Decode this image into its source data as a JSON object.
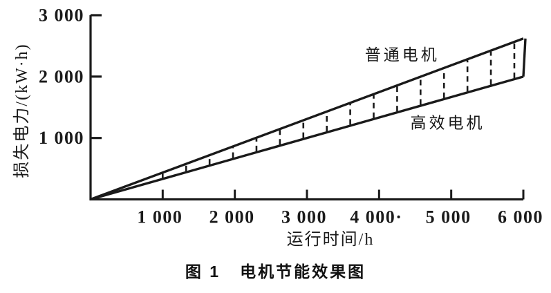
{
  "figure": {
    "background": "#ffffff",
    "ink_color": "#1a1a1a",
    "caption": "图 1   电机节能效果图"
  },
  "chart_data": {
    "type": "line",
    "title": "图 1   电机节能效果图",
    "xlabel": "运行时间/h",
    "ylabel": "损失电力/(kW·h)",
    "xlim": [
      0,
      6000
    ],
    "ylim": [
      0,
      3000
    ],
    "grid": false,
    "legend_position": "inline-annotations",
    "x_ticks": [
      {
        "value": 1000,
        "label": "1 000"
      },
      {
        "value": 2000,
        "label": "2 000"
      },
      {
        "value": 3000,
        "label": "3 000"
      },
      {
        "value": 4000,
        "label": "4 000·"
      },
      {
        "value": 5000,
        "label": "5 000"
      },
      {
        "value": 6000,
        "label": "6 000"
      }
    ],
    "y_ticks": [
      {
        "value": 1000,
        "label": "1 000"
      },
      {
        "value": 2000,
        "label": "2 000"
      },
      {
        "value": 3000,
        "label": "3 000"
      }
    ],
    "series": [
      {
        "name": "普通电机",
        "x": [
          0,
          6000
        ],
        "values": [
          0,
          2620
        ],
        "annotation": {
          "text": "普通电机",
          "x": 4320,
          "y": 2350
        }
      },
      {
        "name": "高效电机",
        "x": [
          0,
          6000
        ],
        "values": [
          0,
          2000
        ],
        "annotation": {
          "text": "高效电机",
          "x": 4950,
          "y": 1245
        }
      }
    ],
    "band": {
      "between": [
        "普通电机",
        "高效电机"
      ],
      "closed_right_edge": true,
      "hatch": {
        "pattern": "dashed-vertical",
        "x_start": 1000,
        "x_end": 5875,
        "step": 325
      }
    }
  }
}
